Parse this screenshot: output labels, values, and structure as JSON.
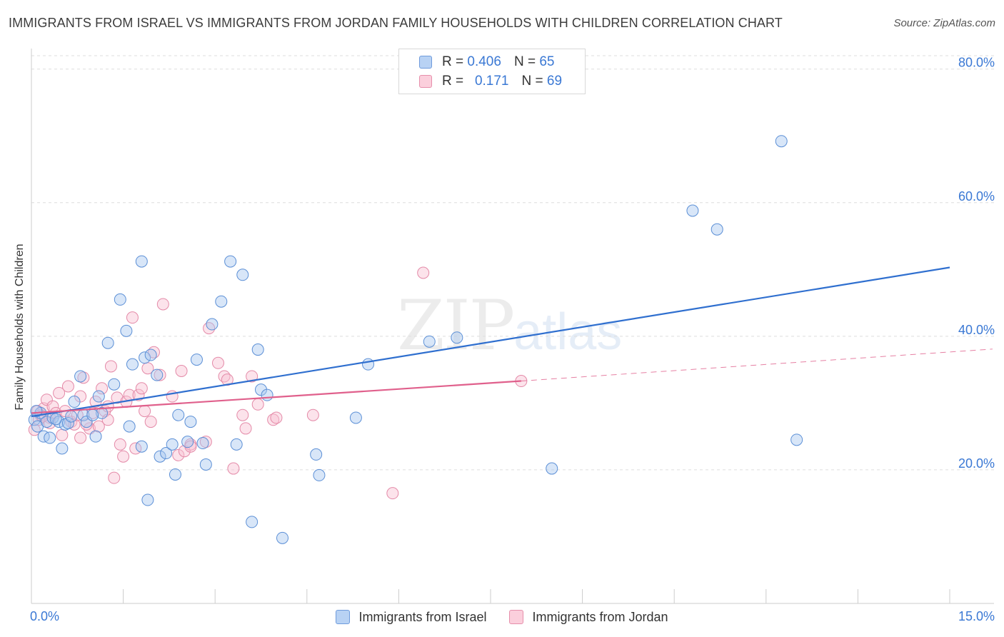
{
  "title": "IMMIGRANTS FROM ISRAEL VS IMMIGRANTS FROM JORDAN FAMILY HOUSEHOLDS WITH CHILDREN CORRELATION CHART",
  "source": "Source: ZipAtlas.com",
  "watermark": {
    "zip": "ZIP",
    "atlas": "atlas"
  },
  "legend_top": [
    {
      "r_label": "R =",
      "r_value": "0.406",
      "n_label": "N =",
      "n_value": "65"
    },
    {
      "r_label": "R =",
      "r_value": "0.171",
      "n_label": "N =",
      "n_value": "69"
    }
  ],
  "colors": {
    "israel_fill": "#a8c8f0",
    "israel_stroke": "#5b8fd6",
    "israel_line": "#2f6fcf",
    "jordan_fill": "#f8c0d2",
    "jordan_stroke": "#e48aa8",
    "jordan_line": "#e0608c",
    "axis_text": "#3a78d4",
    "grid": "#dddddd"
  },
  "chart_data": {
    "type": "scatter",
    "ylabel": "Family Households with Children",
    "xlim": [
      0,
      15
    ],
    "ylim": [
      0,
      82
    ],
    "x_tick_labels": [
      "0.0%",
      "15.0%"
    ],
    "y_tick_labels": [
      "20.0%",
      "40.0%",
      "60.0%",
      "80.0%"
    ],
    "y_ticks": [
      20,
      40,
      60,
      80
    ],
    "legend_placement": "top-center",
    "grid": true,
    "series": [
      {
        "name": "Immigrants from Israel",
        "trend": {
          "x": [
            0,
            15
          ],
          "y": [
            28.0,
            50.3
          ]
        },
        "points": [
          [
            0.05,
            27.5
          ],
          [
            0.1,
            26.5
          ],
          [
            0.15,
            28.5
          ],
          [
            0.2,
            25
          ],
          [
            0.25,
            27.2
          ],
          [
            0.3,
            24.8
          ],
          [
            0.35,
            27.8
          ],
          [
            0.45,
            27.2
          ],
          [
            0.5,
            23.2
          ],
          [
            0.55,
            26.8
          ],
          [
            0.6,
            27
          ],
          [
            0.7,
            30.2
          ],
          [
            0.8,
            34
          ],
          [
            0.85,
            28.2
          ],
          [
            0.9,
            27.2
          ],
          [
            1.05,
            25
          ],
          [
            1.1,
            31
          ],
          [
            1.15,
            28.5
          ],
          [
            1.25,
            39
          ],
          [
            1.35,
            32.8
          ],
          [
            1.45,
            45.5
          ],
          [
            1.55,
            40.8
          ],
          [
            1.6,
            26.5
          ],
          [
            1.65,
            35.8
          ],
          [
            1.8,
            51.2
          ],
          [
            1.8,
            23.5
          ],
          [
            1.85,
            36.8
          ],
          [
            1.9,
            15.5
          ],
          [
            1.95,
            37.2
          ],
          [
            2.05,
            34.2
          ],
          [
            2.1,
            22
          ],
          [
            2.2,
            22.5
          ],
          [
            2.3,
            23.8
          ],
          [
            2.35,
            19.3
          ],
          [
            2.4,
            28.2
          ],
          [
            2.55,
            24.2
          ],
          [
            2.6,
            27.2
          ],
          [
            2.7,
            36.5
          ],
          [
            2.8,
            24
          ],
          [
            2.85,
            20.8
          ],
          [
            2.95,
            41.8
          ],
          [
            3.1,
            45.2
          ],
          [
            3.25,
            51.2
          ],
          [
            3.35,
            23.8
          ],
          [
            3.45,
            49.2
          ],
          [
            3.6,
            12.2
          ],
          [
            3.7,
            38
          ],
          [
            3.75,
            32
          ],
          [
            3.85,
            31.2
          ],
          [
            4.1,
            9.8
          ],
          [
            4.65,
            22.3
          ],
          [
            4.7,
            19.2
          ],
          [
            5.3,
            27.8
          ],
          [
            5.5,
            35.8
          ],
          [
            6.5,
            39.2
          ],
          [
            6.95,
            39.8
          ],
          [
            8.5,
            20.2
          ],
          [
            10.8,
            58.8
          ],
          [
            11.2,
            56
          ],
          [
            12.25,
            69.2
          ],
          [
            12.5,
            24.5
          ],
          [
            0.08,
            28.8
          ],
          [
            0.4,
            27.6
          ],
          [
            0.65,
            28
          ],
          [
            1.0,
            28.2
          ]
        ]
      },
      {
        "name": "Immigrants from Jordan",
        "trend": {
          "x": [
            0,
            8.0
          ],
          "y": [
            28.5,
            33.3
          ]
        },
        "trend_dashed": {
          "x": [
            8.0,
            15
          ],
          "y": [
            33.3,
            37.8
          ]
        },
        "points": [
          [
            0.05,
            26
          ],
          [
            0.1,
            28.8
          ],
          [
            0.12,
            27.5
          ],
          [
            0.15,
            28.2
          ],
          [
            0.2,
            29.2
          ],
          [
            0.25,
            30.5
          ],
          [
            0.3,
            27.8
          ],
          [
            0.35,
            29.5
          ],
          [
            0.4,
            28.5
          ],
          [
            0.45,
            31.5
          ],
          [
            0.5,
            25.2
          ],
          [
            0.55,
            28.8
          ],
          [
            0.6,
            32.5
          ],
          [
            0.65,
            27.2
          ],
          [
            0.7,
            26.8
          ],
          [
            0.75,
            28.2
          ],
          [
            0.8,
            31
          ],
          [
            0.8,
            24.8
          ],
          [
            0.85,
            33.8
          ],
          [
            0.95,
            26.2
          ],
          [
            1.0,
            28.5
          ],
          [
            1.05,
            30.2
          ],
          [
            1.1,
            26.5
          ],
          [
            1.15,
            32.2
          ],
          [
            1.2,
            28.8
          ],
          [
            1.25,
            29.5
          ],
          [
            1.3,
            35.5
          ],
          [
            1.35,
            18.8
          ],
          [
            1.4,
            30.8
          ],
          [
            1.45,
            23.8
          ],
          [
            1.5,
            22
          ],
          [
            1.55,
            30.2
          ],
          [
            1.6,
            31.2
          ],
          [
            1.65,
            42.8
          ],
          [
            1.7,
            23.2
          ],
          [
            1.75,
            31.2
          ],
          [
            1.8,
            32.2
          ],
          [
            1.85,
            28.8
          ],
          [
            1.9,
            35.2
          ],
          [
            1.95,
            27.2
          ],
          [
            2.0,
            37.6
          ],
          [
            2.1,
            34.2
          ],
          [
            2.15,
            44.8
          ],
          [
            2.3,
            31
          ],
          [
            2.4,
            22.2
          ],
          [
            2.45,
            34.8
          ],
          [
            2.5,
            22.8
          ],
          [
            2.6,
            23.8
          ],
          [
            2.85,
            24.2
          ],
          [
            2.9,
            41.2
          ],
          [
            3.05,
            36
          ],
          [
            3.15,
            34
          ],
          [
            3.2,
            33.5
          ],
          [
            3.3,
            20.2
          ],
          [
            3.45,
            28.2
          ],
          [
            3.5,
            26.2
          ],
          [
            3.6,
            34
          ],
          [
            3.7,
            29.8
          ],
          [
            3.95,
            27.5
          ],
          [
            4.0,
            27.8
          ],
          [
            4.6,
            28.2
          ],
          [
            5.9,
            16.5
          ],
          [
            6.4,
            49.5
          ],
          [
            8.0,
            33.3
          ],
          [
            0.9,
            26.8
          ],
          [
            1.25,
            27.5
          ],
          [
            0.3,
            27
          ],
          [
            0.18,
            28
          ],
          [
            2.6,
            23.5
          ]
        ]
      }
    ]
  },
  "legend_bottom": [
    "Immigrants from Israel",
    "Immigrants from Jordan"
  ]
}
